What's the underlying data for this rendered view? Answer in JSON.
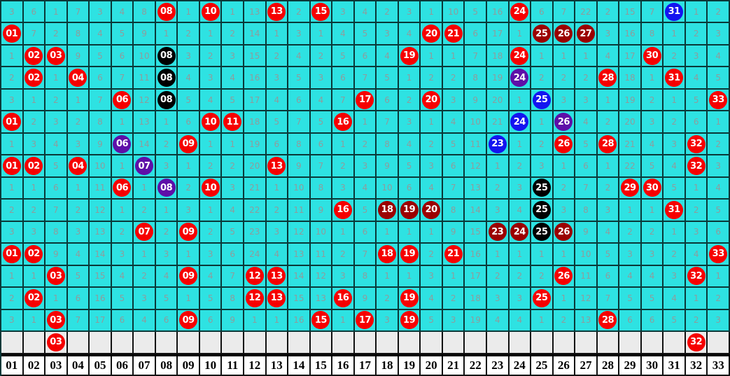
{
  "chart_data": {
    "type": "table",
    "description_visible_content_only": "red-ball trend grid, 33 columns x 15 draw rows, plus forecast row and column header row",
    "columns": [
      "01",
      "02",
      "03",
      "04",
      "05",
      "06",
      "07",
      "08",
      "09",
      "10",
      "11",
      "12",
      "13",
      "14",
      "15",
      "16",
      "17",
      "18",
      "19",
      "20",
      "21",
      "22",
      "23",
      "24",
      "25",
      "26",
      "27",
      "28",
      "29",
      "30",
      "31",
      "32",
      "33"
    ],
    "cell_encoding": "plain string = gray miss-count number; 'NN|c' = ball with number NN and color code c (r=red, k=black, m=darkred, b=blue, p=purple); empty string = blank cell",
    "rows": [
      [
        "3",
        "6",
        "1",
        "7",
        "3",
        "4",
        "8",
        "08|r",
        "1",
        "10|r",
        "1",
        "13",
        "13|r",
        "2",
        "15|r",
        "3",
        "4",
        "2",
        "3",
        "1",
        "10",
        "5",
        "16",
        "24|r",
        "6",
        "7",
        "22",
        "2",
        "15",
        "7",
        "31|b",
        "1",
        "2"
      ],
      [
        "01|r",
        "7",
        "2",
        "8",
        "4",
        "5",
        "9",
        "1",
        "2",
        "1",
        "2",
        "14",
        "1",
        "3",
        "1",
        "4",
        "5",
        "3",
        "4",
        "20|r",
        "21|r",
        "6",
        "17",
        "1",
        "25|m",
        "26|m",
        "27|m",
        "3",
        "16",
        "8",
        "1",
        "2",
        "3"
      ],
      [
        "1",
        "02|r",
        "03|r",
        "9",
        "5",
        "6",
        "10",
        "08|k",
        "3",
        "2",
        "3",
        "15",
        "2",
        "4",
        "2",
        "5",
        "6",
        "4",
        "19|r",
        "1",
        "1",
        "7",
        "18",
        "24|r",
        "1",
        "1",
        "1",
        "4",
        "17",
        "30|r",
        "2",
        "3",
        "4"
      ],
      [
        "2",
        "02|r",
        "1",
        "04|r",
        "6",
        "7",
        "11",
        "08|k",
        "4",
        "3",
        "4",
        "16",
        "3",
        "5",
        "3",
        "6",
        "7",
        "5",
        "1",
        "2",
        "2",
        "8",
        "19",
        "24|p",
        "2",
        "2",
        "2",
        "28|r",
        "18",
        "1",
        "31|r",
        "4",
        "5"
      ],
      [
        "3",
        "1",
        "2",
        "1",
        "7",
        "06|r",
        "12",
        "08|k",
        "5",
        "4",
        "5",
        "17",
        "4",
        "6",
        "4",
        "7",
        "17|r",
        "6",
        "2",
        "20|r",
        "3",
        "9",
        "20",
        "1",
        "25|b",
        "3",
        "3",
        "1",
        "19",
        "2",
        "1",
        "5",
        "33|r"
      ],
      [
        "01|r",
        "2",
        "3",
        "2",
        "8",
        "1",
        "13",
        "1",
        "6",
        "10|r",
        "11|r",
        "18",
        "5",
        "7",
        "5",
        "16|r",
        "1",
        "7",
        "3",
        "1",
        "4",
        "10",
        "21",
        "24|b",
        "1",
        "26|p",
        "4",
        "2",
        "20",
        "3",
        "2",
        "6",
        "1"
      ],
      [
        "1",
        "3",
        "4",
        "3",
        "9",
        "06|p",
        "14",
        "2",
        "09|r",
        "1",
        "1",
        "19",
        "6",
        "8",
        "6",
        "1",
        "2",
        "8",
        "4",
        "2",
        "5",
        "11",
        "23|b",
        "1",
        "2",
        "26|r",
        "5",
        "28|r",
        "21",
        "4",
        "3",
        "32|r",
        "2"
      ],
      [
        "01|r",
        "02|r",
        "5",
        "04|r",
        "10",
        "1",
        "07|p",
        "3",
        "1",
        "2",
        "2",
        "20",
        "13|r",
        "9",
        "7",
        "2",
        "3",
        "9",
        "5",
        "3",
        "6",
        "12",
        "1",
        "2",
        "3",
        "1",
        "6",
        "1",
        "22",
        "5",
        "4",
        "32|r",
        "3"
      ],
      [
        "1",
        "1",
        "6",
        "1",
        "11",
        "06|r",
        "1",
        "08|p",
        "2",
        "10|r",
        "3",
        "21",
        "1",
        "10",
        "8",
        "3",
        "4",
        "10",
        "6",
        "4",
        "7",
        "13",
        "2",
        "3",
        "25|k",
        "2",
        "7",
        "2",
        "29|r",
        "30|r",
        "5",
        "1",
        "4"
      ],
      [
        "2",
        "2",
        "7",
        "2",
        "12",
        "1",
        "2",
        "1",
        "3",
        "1",
        "4",
        "22",
        "2",
        "11",
        "9",
        "16|r",
        "5",
        "18|m",
        "19|m",
        "20|m",
        "8",
        "14",
        "3",
        "4",
        "25|k",
        "3",
        "8",
        "3",
        "1",
        "1",
        "31|r",
        "2",
        "5"
      ],
      [
        "3",
        "3",
        "8",
        "3",
        "13",
        "2",
        "07|r",
        "2",
        "09|r",
        "2",
        "5",
        "23",
        "3",
        "12",
        "10",
        "1",
        "6",
        "1",
        "1",
        "1",
        "9",
        "15",
        "23|m",
        "24|m",
        "25|k",
        "26|m",
        "9",
        "4",
        "2",
        "2",
        "1",
        "3",
        "6"
      ],
      [
        "01|r",
        "02|r",
        "9",
        "4",
        "14",
        "3",
        "1",
        "3",
        "1",
        "3",
        "6",
        "24",
        "4",
        "13",
        "11",
        "2",
        "7",
        "18|r",
        "19|r",
        "2",
        "21|r",
        "16",
        "1",
        "1",
        "1",
        "1",
        "10",
        "5",
        "3",
        "3",
        "2",
        "4",
        "33|r"
      ],
      [
        "1",
        "1",
        "03|r",
        "5",
        "15",
        "4",
        "2",
        "4",
        "09|r",
        "4",
        "7",
        "12|r",
        "13|r",
        "14",
        "12",
        "3",
        "8",
        "1",
        "1",
        "3",
        "1",
        "17",
        "2",
        "2",
        "2",
        "26|r",
        "11",
        "6",
        "4",
        "4",
        "3",
        "32|r",
        "1"
      ],
      [
        "2",
        "02|r",
        "1",
        "6",
        "16",
        "5",
        "3",
        "5",
        "1",
        "5",
        "8",
        "12|r",
        "13|r",
        "15",
        "13",
        "16|r",
        "9",
        "2",
        "19|r",
        "4",
        "2",
        "18",
        "3",
        "3",
        "25|r",
        "1",
        "12",
        "7",
        "5",
        "5",
        "4",
        "1",
        "2"
      ],
      [
        "3",
        "1",
        "03|r",
        "7",
        "17",
        "6",
        "4",
        "6",
        "09|r",
        "6",
        "9",
        "1",
        "1",
        "16",
        "15|r",
        "1",
        "17|r",
        "3",
        "19|r",
        "5",
        "3",
        "19",
        "4",
        "4",
        "1",
        "2",
        "13",
        "28|r",
        "6",
        "6",
        "5",
        "2",
        "3"
      ]
    ],
    "forecast_row": [
      "",
      "",
      "03|r",
      "",
      "",
      "",
      "",
      "",
      "",
      "",
      "",
      "",
      "",
      "",
      "",
      "",
      "",
      "",
      "",
      "",
      "",
      "",
      "",
      "",
      "",
      "",
      "",
      "",
      "",
      "",
      "",
      "32|r",
      ""
    ]
  },
  "colors": {
    "background": "#2ee2e2",
    "grid_line": "#0a3838",
    "number_text": "#8e9c9c",
    "forecast_row_bg": "#ebebeb",
    "header_bg": "#ffffff",
    "header_text": "#000000",
    "ball": {
      "r": "#f60000",
      "k": "#000000",
      "m": "#9b0000",
      "b": "#1414f0",
      "p": "#5e0fa8"
    },
    "ball_names": {
      "r": "red-ball",
      "k": "black-ball",
      "m": "darkred-ball",
      "b": "blue-ball",
      "p": "purple-ball"
    },
    "ball_text": "#ffffff"
  }
}
